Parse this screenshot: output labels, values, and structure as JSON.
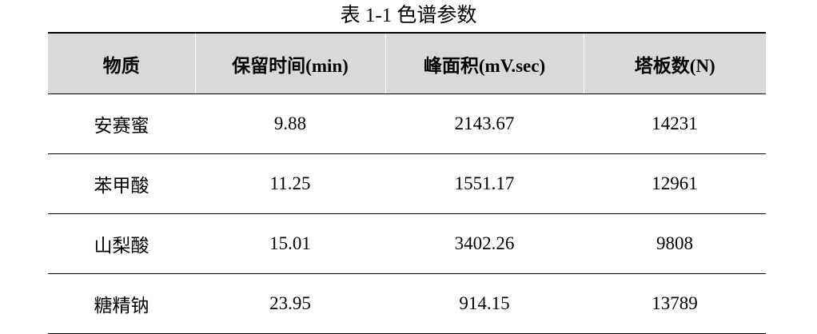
{
  "caption": "表 1-1 色谱参数",
  "headers": [
    "物质",
    "保留时间(min)",
    "峰面积(mV.sec)",
    "塔板数(N)"
  ],
  "rows": [
    [
      "安赛蜜",
      "9.88",
      "2143.67",
      "14231"
    ],
    [
      "苯甲酸",
      "11.25",
      "1551.17",
      "12961"
    ],
    [
      "山梨酸",
      "15.01",
      "3402.26",
      "9808"
    ],
    [
      "糖精钠",
      "23.95",
      "914.15",
      "13789"
    ]
  ]
}
